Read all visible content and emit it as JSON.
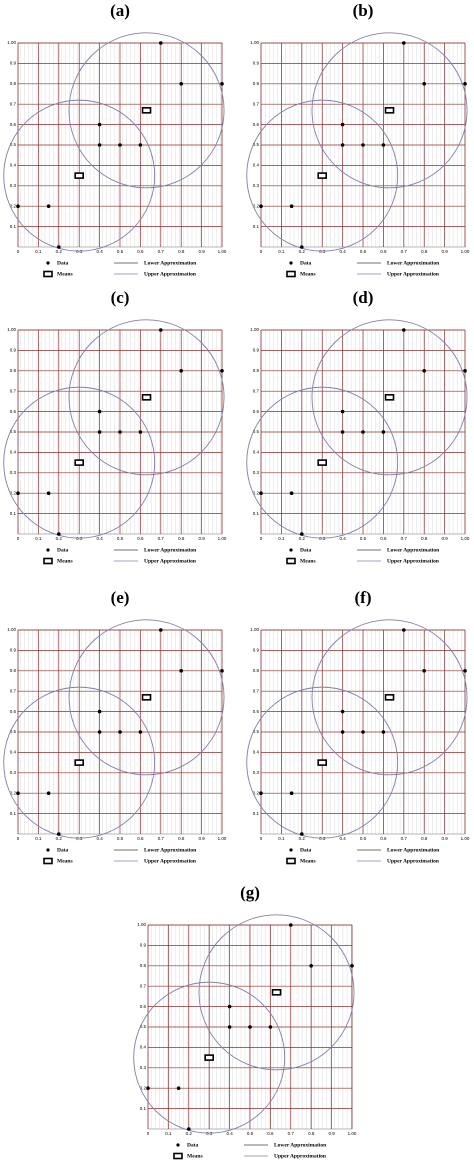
{
  "chart_data": [
    {
      "type": "scatter",
      "title": "(a)",
      "series": [
        {
          "name": "Data",
          "color": "#000000",
          "x": [
            0,
            0.15,
            0.2,
            0.4,
            0.4,
            0.5,
            0.6,
            0.7,
            0.8,
            1.0
          ],
          "y": [
            0.2,
            0.2,
            0,
            0.6,
            0.5,
            0.5,
            0.5,
            1.0,
            0.8,
            0.8
          ]
        },
        {
          "name": "Means",
          "color": "#000000",
          "x": [
            0.3,
            0.63
          ],
          "y": [
            0.35,
            0.67
          ]
        },
        {
          "name": "Lower Approximation",
          "color": "#444444"
        },
        {
          "name": "Upper Approximation",
          "color": "#8080a8",
          "circles": {
            "cx": [
              0.3,
              0.63
            ],
            "cy": [
              0.35,
              0.67
            ],
            "r": [
              0.37,
              0.38
            ]
          }
        }
      ],
      "xlim": [
        0,
        1
      ],
      "ylim": [
        0,
        1
      ],
      "xticks": [
        0,
        0.1,
        0.2,
        0.3,
        0.4,
        0.5,
        0.6,
        0.7,
        0.8,
        0.9,
        {
          "value": 1,
          "label": "1.00"
        }
      ],
      "yticks": [
        0.1,
        0.2,
        0.3,
        0.4,
        0.5,
        0.6,
        0.7,
        0.8,
        0.9,
        {
          "value": 1,
          "label": "1.00"
        }
      ],
      "grid": true
    },
    {
      "type": "scatter",
      "title": "(b)",
      "series": [
        {
          "name": "Data",
          "color": "#000000",
          "x": [
            0,
            0.15,
            0.2,
            0.4,
            0.4,
            0.5,
            0.6,
            0.7,
            0.8,
            1.0
          ],
          "y": [
            0.2,
            0.2,
            0,
            0.6,
            0.5,
            0.5,
            0.5,
            1.0,
            0.8,
            0.8
          ]
        },
        {
          "name": "Means",
          "color": "#000000",
          "x": [
            0.3,
            0.63
          ],
          "y": [
            0.35,
            0.67
          ]
        },
        {
          "name": "Lower Approximation",
          "color": "#444444"
        },
        {
          "name": "Upper Approximation",
          "color": "#8080a8",
          "circles": {
            "cx": [
              0.3,
              0.63
            ],
            "cy": [
              0.35,
              0.67
            ],
            "r": [
              0.37,
              0.38
            ]
          }
        }
      ],
      "xlim": [
        0,
        1
      ],
      "ylim": [
        0,
        1
      ],
      "xticks": [
        0,
        0.1,
        0.2,
        0.3,
        0.4,
        0.5,
        0.6,
        0.7,
        0.8,
        0.9,
        {
          "value": 1,
          "label": "1.00"
        }
      ],
      "yticks": [
        0.1,
        0.2,
        0.3,
        0.4,
        0.5,
        0.6,
        0.7,
        0.8,
        0.9,
        {
          "value": 1,
          "label": "1.00"
        }
      ],
      "grid": true
    },
    {
      "type": "scatter",
      "title": "(c)",
      "series": [
        {
          "name": "Data",
          "color": "#000000",
          "x": [
            0,
            0.15,
            0.2,
            0.4,
            0.4,
            0.5,
            0.6,
            0.7,
            0.8,
            1.0
          ],
          "y": [
            0.2,
            0.2,
            0,
            0.6,
            0.5,
            0.5,
            0.5,
            1.0,
            0.8,
            0.8
          ]
        },
        {
          "name": "Means",
          "color": "#000000",
          "x": [
            0.3,
            0.63
          ],
          "y": [
            0.35,
            0.67
          ]
        },
        {
          "name": "Lower Approximation",
          "color": "#444444"
        },
        {
          "name": "Upper Approximation",
          "color": "#8080a8",
          "circles": {
            "cx": [
              0.3,
              0.63
            ],
            "cy": [
              0.35,
              0.67
            ],
            "r": [
              0.37,
              0.38
            ]
          }
        }
      ],
      "xlim": [
        0,
        1
      ],
      "ylim": [
        0,
        1
      ],
      "xticks": [
        0,
        0.1,
        0.2,
        0.3,
        0.4,
        0.5,
        0.6,
        0.7,
        0.8,
        0.9,
        {
          "value": 1,
          "label": "1.00"
        }
      ],
      "yticks": [
        0.1,
        0.2,
        0.3,
        0.4,
        0.5,
        0.6,
        0.7,
        0.8,
        0.9,
        {
          "value": 1,
          "label": "1.00"
        }
      ],
      "grid": true
    },
    {
      "type": "scatter",
      "title": "(d)",
      "series": [
        {
          "name": "Data",
          "color": "#000000",
          "x": [
            0,
            0.15,
            0.2,
            0.4,
            0.4,
            0.5,
            0.6,
            0.7,
            0.8,
            1.0
          ],
          "y": [
            0.2,
            0.2,
            0,
            0.6,
            0.5,
            0.5,
            0.5,
            1.0,
            0.8,
            0.8
          ]
        },
        {
          "name": "Means",
          "color": "#000000",
          "x": [
            0.3,
            0.63
          ],
          "y": [
            0.35,
            0.67
          ]
        },
        {
          "name": "Lower Approximation",
          "color": "#444444"
        },
        {
          "name": "Upper Approximation",
          "color": "#8080a8",
          "circles": {
            "cx": [
              0.3,
              0.63
            ],
            "cy": [
              0.35,
              0.67
            ],
            "r": [
              0.37,
              0.38
            ]
          }
        }
      ],
      "xlim": [
        0,
        1
      ],
      "ylim": [
        0,
        1
      ],
      "xticks": [
        0,
        0.1,
        0.2,
        0.3,
        0.4,
        0.5,
        0.6,
        0.7,
        0.8,
        0.9,
        {
          "value": 1,
          "label": "1.00"
        }
      ],
      "yticks": [
        0.1,
        0.2,
        0.3,
        0.4,
        0.5,
        0.6,
        0.7,
        0.8,
        0.9,
        {
          "value": 1,
          "label": "1.00"
        }
      ],
      "grid": true
    },
    {
      "type": "scatter",
      "title": "(e)",
      "series": [
        {
          "name": "Data",
          "color": "#000000",
          "x": [
            0,
            0.15,
            0.2,
            0.4,
            0.4,
            0.5,
            0.6,
            0.7,
            0.8,
            1.0
          ],
          "y": [
            0.2,
            0.2,
            0,
            0.6,
            0.5,
            0.5,
            0.5,
            1.0,
            0.8,
            0.8
          ]
        },
        {
          "name": "Means",
          "color": "#000000",
          "x": [
            0.3,
            0.63
          ],
          "y": [
            0.35,
            0.67
          ]
        },
        {
          "name": "Lower Approximation",
          "color": "#444444"
        },
        {
          "name": "Upper Approximation",
          "color": "#8080a8",
          "circles": {
            "cx": [
              0.3,
              0.63
            ],
            "cy": [
              0.35,
              0.67
            ],
            "r": [
              0.37,
              0.38
            ]
          }
        }
      ],
      "xlim": [
        0,
        1
      ],
      "ylim": [
        0,
        1
      ],
      "xticks": [
        0,
        0.1,
        0.2,
        0.3,
        0.4,
        0.5,
        0.6,
        0.7,
        0.8,
        0.9,
        {
          "value": 1,
          "label": "1.00"
        }
      ],
      "yticks": [
        0.1,
        0.2,
        0.3,
        0.4,
        0.5,
        0.6,
        0.7,
        0.8,
        0.9,
        {
          "value": 1,
          "label": "1.00"
        }
      ],
      "grid": true
    },
    {
      "type": "scatter",
      "title": "(f)",
      "series": [
        {
          "name": "Data",
          "color": "#000000",
          "x": [
            0,
            0.15,
            0.2,
            0.4,
            0.4,
            0.5,
            0.6,
            0.7,
            0.8,
            1.0
          ],
          "y": [
            0.2,
            0.2,
            0,
            0.6,
            0.5,
            0.5,
            0.5,
            1.0,
            0.8,
            0.8
          ]
        },
        {
          "name": "Means",
          "color": "#000000",
          "x": [
            0.3,
            0.63
          ],
          "y": [
            0.35,
            0.67
          ]
        },
        {
          "name": "Lower Approximation",
          "color": "#444444"
        },
        {
          "name": "Upper Approximation",
          "color": "#8080a8",
          "circles": {
            "cx": [
              0.3,
              0.63
            ],
            "cy": [
              0.35,
              0.67
            ],
            "r": [
              0.37,
              0.38
            ]
          }
        }
      ],
      "xlim": [
        0,
        1
      ],
      "ylim": [
        0,
        1
      ],
      "xticks": [
        0,
        0.1,
        0.2,
        0.3,
        0.4,
        0.5,
        0.6,
        0.7,
        0.8,
        0.9,
        {
          "value": 1,
          "label": "1.00"
        }
      ],
      "yticks": [
        0.1,
        0.2,
        0.3,
        0.4,
        0.5,
        0.6,
        0.7,
        0.8,
        0.9,
        {
          "value": 1,
          "label": "1.00"
        }
      ],
      "grid": true
    },
    {
      "type": "scatter",
      "title": "(g)",
      "series": [
        {
          "name": "Data",
          "color": "#000000",
          "x": [
            0,
            0.15,
            0.2,
            0.4,
            0.4,
            0.5,
            0.6,
            0.7,
            0.8,
            1.0
          ],
          "y": [
            0.2,
            0.2,
            0,
            0.6,
            0.5,
            0.5,
            0.5,
            1.0,
            0.8,
            0.8
          ]
        },
        {
          "name": "Means",
          "color": "#000000",
          "x": [
            0.3,
            0.63
          ],
          "y": [
            0.35,
            0.67
          ]
        },
        {
          "name": "Lower Approximation",
          "color": "#444444"
        },
        {
          "name": "Upper Approximation",
          "color": "#8080a8",
          "circles": {
            "cx": [
              0.3,
              0.63
            ],
            "cy": [
              0.35,
              0.67
            ],
            "r": [
              0.37,
              0.38
            ]
          }
        }
      ],
      "xlim": [
        0,
        1
      ],
      "ylim": [
        0,
        1
      ],
      "xticks": [
        0,
        0.1,
        0.2,
        0.3,
        0.4,
        0.5,
        0.6,
        0.7,
        0.8,
        0.9,
        {
          "value": 1,
          "label": "1.00"
        }
      ],
      "yticks": [
        0.1,
        0.2,
        0.3,
        0.4,
        0.5,
        0.6,
        0.7,
        0.8,
        0.9,
        {
          "value": 1,
          "label": "1.00"
        }
      ],
      "grid": true
    }
  ]
}
